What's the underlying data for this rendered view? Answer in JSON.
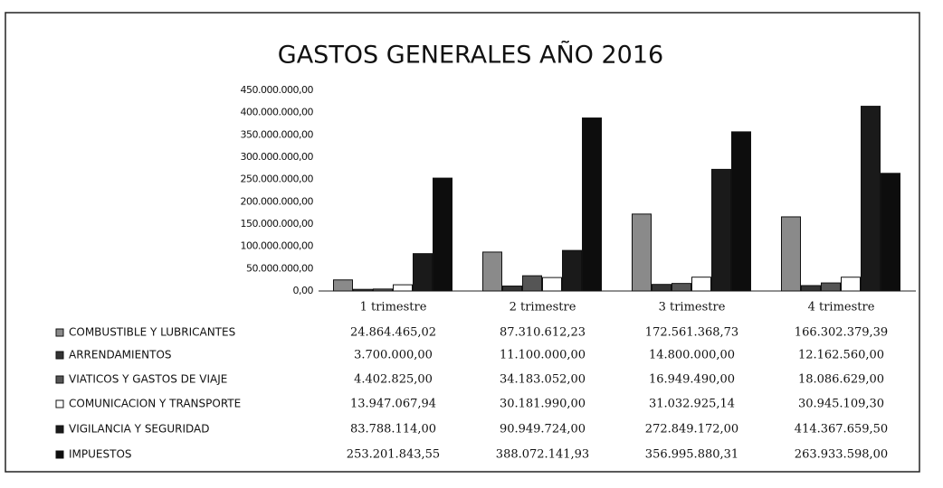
{
  "chart_data": {
    "type": "bar",
    "title": "GASTOS GENERALES AÑO 2016",
    "categories": [
      "1 trimestre",
      "2 trimestre",
      "3 trimestre",
      "4 trimestre"
    ],
    "series": [
      {
        "name": "COMBUSTIBLE Y LUBRICANTES",
        "color": "#8a8a8a",
        "values": [
          24864465.02,
          87310612.23,
          172561368.73,
          166302379.39
        ],
        "value_labels": [
          "24.864.465,02",
          "87.310.612,23",
          "172.561.368,73",
          "166.302.379,39"
        ]
      },
      {
        "name": "ARRENDAMIENTOS",
        "color": "#333333",
        "values": [
          3700000,
          11100000,
          14800000,
          12162560
        ],
        "value_labels": [
          "3.700.000,00",
          "11.100.000,00",
          "14.800.000,00",
          "12.162.560,00"
        ]
      },
      {
        "name": "VIATICOS Y GASTOS DE VIAJE",
        "color": "#555555",
        "values": [
          4402825,
          34183052,
          16949490,
          18086629
        ],
        "value_labels": [
          "4.402.825,00",
          "34.183.052,00",
          "16.949.490,00",
          "18.086.629,00"
        ]
      },
      {
        "name": "COMUNICACION Y TRANSPORTE",
        "color": "#ffffff",
        "values": [
          13947067.94,
          30181990,
          31032925.14,
          30945109.3
        ],
        "value_labels": [
          "13.947.067,94",
          "30.181.990,00",
          "31.032.925,14",
          "30.945.109,30"
        ]
      },
      {
        "name": "VIGILANCIA Y SEGURIDAD",
        "color": "#1a1a1a",
        "values": [
          83788114,
          90949724,
          272849172,
          414367659.5
        ],
        "value_labels": [
          "83.788.114,00",
          "90.949.724,00",
          "272.849.172,00",
          "414.367.659,50"
        ]
      },
      {
        "name": "IMPUESTOS",
        "color": "#0d0d0d",
        "values": [
          253201843.55,
          388072141.93,
          356995880.31,
          263933598
        ],
        "value_labels": [
          "253.201.843,55",
          "388.072.141,93",
          "356.995.880,31",
          "263.933.598,00"
        ]
      }
    ],
    "ylim": [
      0,
      450000000
    ],
    "yticks": [
      {
        "value": 0,
        "label": "0,00"
      },
      {
        "value": 50000000,
        "label": "50.000.000,00"
      },
      {
        "value": 100000000,
        "label": "100.000.000,00"
      },
      {
        "value": 150000000,
        "label": "150.000.000,00"
      },
      {
        "value": 200000000,
        "label": "200.000.000,00"
      },
      {
        "value": 250000000,
        "label": "250.000.000,00"
      },
      {
        "value": 300000000,
        "label": "300.000.000,00"
      },
      {
        "value": 350000000,
        "label": "350.000.000,00"
      },
      {
        "value": 400000000,
        "label": "400.000.000,00"
      },
      {
        "value": 450000000,
        "label": "450.000.000,00"
      }
    ],
    "grid": false
  }
}
